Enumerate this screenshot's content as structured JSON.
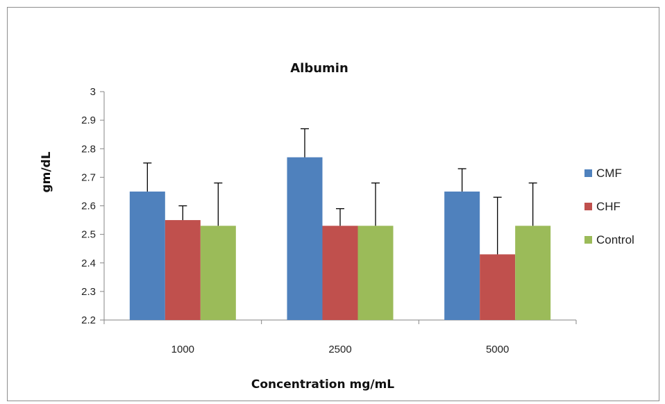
{
  "chart_data": {
    "type": "bar",
    "title": "Albumin",
    "xlabel": "Concentration mg/mL",
    "ylabel": "gm/dL",
    "categories": [
      "1000",
      "2500",
      "5000"
    ],
    "series": [
      {
        "name": "CMF",
        "color": "#4F81BD",
        "values": [
          2.65,
          2.77,
          2.65
        ],
        "errors": [
          0.1,
          0.1,
          0.08
        ]
      },
      {
        "name": "CHF",
        "color": "#C0504D",
        "values": [
          2.55,
          2.53,
          2.43
        ],
        "errors": [
          0.05,
          0.06,
          0.2
        ]
      },
      {
        "name": "Control",
        "color": "#9BBB59",
        "values": [
          2.53,
          2.53,
          2.53
        ],
        "errors": [
          0.15,
          0.15,
          0.15
        ]
      }
    ],
    "ylim": [
      2.2,
      3.0
    ],
    "yticks": [
      "2.2",
      "2.3",
      "2.4",
      "2.5",
      "2.6",
      "2.7",
      "2.8",
      "2.9",
      "3"
    ],
    "grid": false,
    "legend_position": "right"
  }
}
